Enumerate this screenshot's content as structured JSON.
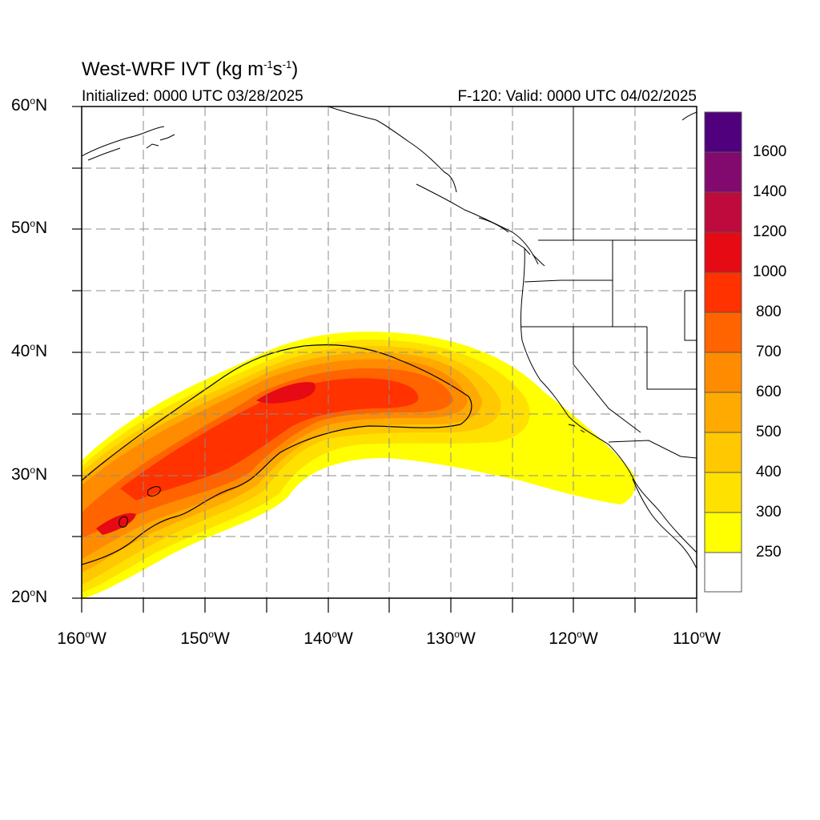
{
  "map": {
    "title_prefix": "West-WRF IVT (kg m",
    "title_sup1": "-1",
    "title_mid": "s",
    "title_sup2": "-1",
    "title_suffix": ")",
    "initialized": "Initialized: 0000 UTC 03/28/2025",
    "valid": "F-120: Valid: 0000 UTC 04/02/2025",
    "region": "Northeast Pacific and western United States",
    "extent": {
      "lon_min": -160,
      "lon_max": -110,
      "lat_min": 20,
      "lat_max": 60
    },
    "lat_labels": [
      {
        "num": "60",
        "hemi": "N"
      },
      {
        "num": "50",
        "hemi": "N"
      },
      {
        "num": "40",
        "hemi": "N"
      },
      {
        "num": "30",
        "hemi": "N"
      },
      {
        "num": "20",
        "hemi": "N"
      }
    ],
    "lon_labels": [
      {
        "num": "160",
        "hemi": "W"
      },
      {
        "num": "150",
        "hemi": "W"
      },
      {
        "num": "140",
        "hemi": "W"
      },
      {
        "num": "130",
        "hemi": "W"
      },
      {
        "num": "120",
        "hemi": "W"
      },
      {
        "num": "110",
        "hemi": "W"
      }
    ],
    "degree_symbol": "o",
    "gridlines": "dashed, every 5 degrees"
  },
  "colorbar": {
    "labels": [
      "1600",
      "1400",
      "1200",
      "1000",
      "800",
      "700",
      "600",
      "500",
      "400",
      "300",
      "250"
    ],
    "colors_bottom_to_top": [
      "#ffffff",
      "#ffff00",
      "#ffe100",
      "#ffc800",
      "#ffaa00",
      "#ff8c00",
      "#ff6400",
      "#ff3200",
      "#e60a14",
      "#be0a3c",
      "#820a6e",
      "#50007d"
    ]
  },
  "palette": {
    "ivt_250": "#ffff00",
    "ivt_300": "#ffe100",
    "ivt_400": "#ffc800",
    "ivt_500": "#ffaa00",
    "ivt_600": "#ff8c00",
    "ivt_700": "#ff6400",
    "ivt_800": "#ff3200",
    "coast": "#000000",
    "grid": "#8c8c8c"
  }
}
